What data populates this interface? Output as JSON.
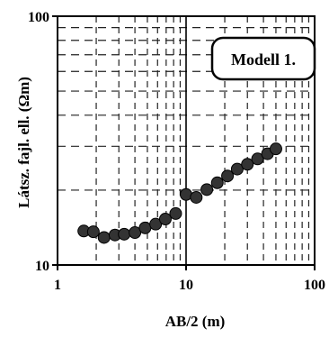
{
  "chart_data": {
    "type": "scatter",
    "title": "",
    "xlabel": "AB/2 (m)",
    "ylabel": "Látsz. fajl. ell. (Ωm)",
    "x_scale": "log",
    "y_scale": "log",
    "xlim": [
      1,
      100
    ],
    "ylim": [
      10,
      100
    ],
    "x_ticks": [
      {
        "value": 1,
        "label": "1"
      },
      {
        "value": 10,
        "label": "10"
      },
      {
        "value": 100,
        "label": "100"
      }
    ],
    "y_ticks": [
      {
        "value": 10,
        "label": "10"
      },
      {
        "value": 100,
        "label": "100"
      }
    ],
    "grid": true,
    "grid_style": "dashed",
    "annotation": "Modell 1.",
    "annotation_position": "top-right",
    "marker_color": "#333333",
    "series": [
      {
        "name": "",
        "x": [
          1.6,
          1.9,
          2.3,
          2.8,
          3.3,
          4.0,
          4.8,
          5.8,
          6.9,
          8.3,
          10.0,
          12.0,
          14.5,
          17.5,
          21.0,
          25.0,
          30.0,
          36.0,
          43.0,
          50.0
        ],
        "y": [
          13.7,
          13.6,
          12.9,
          13.2,
          13.3,
          13.5,
          14.1,
          14.6,
          15.3,
          16.1,
          19.2,
          18.7,
          20.1,
          21.4,
          22.8,
          24.3,
          25.4,
          26.7,
          28.0,
          29.3
        ]
      }
    ]
  }
}
